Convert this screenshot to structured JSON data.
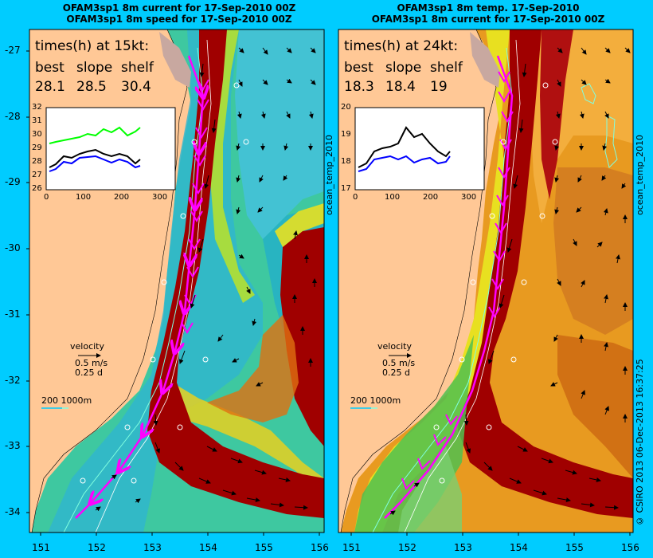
{
  "left_panel": {
    "title_line1": "OFAM3sp1 8m current for 17-Sep-2010 00Z",
    "title_line2": "OFAM3sp1 8m speed for 17-Sep-2010 00Z",
    "times_header": "times(h) at 15kt:",
    "col_best": "best",
    "col_slope": "slope",
    "col_shelf": "shelf",
    "val_best": "28.1",
    "val_slope": "28.5",
    "val_shelf": "30.4",
    "inset_yticks": [
      "32",
      "31",
      "30",
      "29",
      "28",
      "27",
      "26"
    ],
    "inset_xticks": [
      "0",
      "100",
      "200",
      "300"
    ],
    "velocity_label": "velocity",
    "velocity_speed": "0.5 m/s",
    "velocity_time": "0.25 d",
    "depth_legend": "200  1000m",
    "side_label": "ocean_temp_2010"
  },
  "right_panel": {
    "title_line1": "OFAM3sp1 8m temp. 17-Sep-2010",
    "title_line2": "OFAM3sp1 8m current for 17-Sep-2010 00Z",
    "times_header": "times(h) at 24kt:",
    "col_best": "best",
    "col_slope": "slope",
    "col_shelf": "shelf",
    "val_best": "18.3",
    "val_slope": "18.4",
    "val_shelf": "19",
    "inset_yticks": [
      "20",
      "19",
      "18",
      "17"
    ],
    "inset_xticks": [
      "0",
      "100",
      "200",
      "300"
    ],
    "velocity_label": "velocity",
    "velocity_speed": "0.5 m/s",
    "velocity_time": "0.25 d",
    "depth_legend": "200  1000m",
    "side_label": "ocean_temp_2010",
    "copyright": "© CSIRO 2013  06-Dec-2013 16:37:25"
  },
  "lat_ticks": [
    "-27",
    "-28",
    "-29",
    "-30",
    "-31",
    "-32",
    "-33",
    "-34"
  ],
  "lon_ticks_left": [
    "151",
    "152",
    "153",
    "154",
    "155",
    "156"
  ],
  "lon_ticks_right": [
    "151",
    "152",
    "153",
    "154",
    "155",
    "156"
  ],
  "colors": {
    "background": "#00ccff",
    "land": "#ffc896",
    "current_core": "#a00000",
    "route": "#ff00ff"
  }
}
